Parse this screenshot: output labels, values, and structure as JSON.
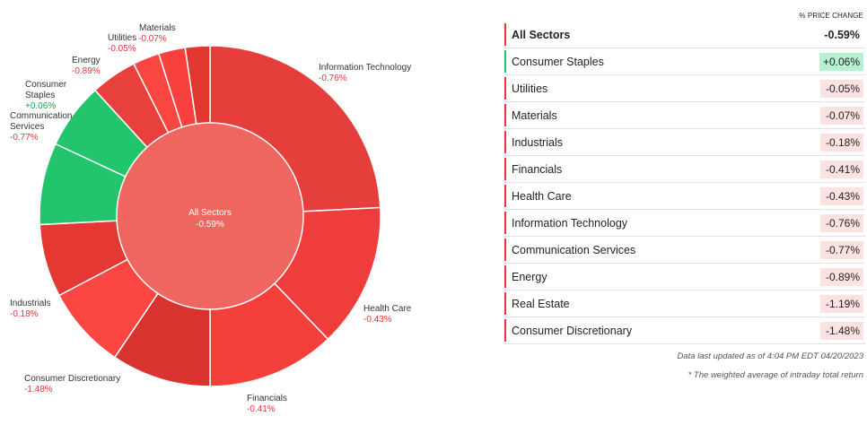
{
  "chart_data": {
    "type": "donut",
    "center": {
      "label": "All Sectors",
      "value": "-0.59%"
    },
    "slices": [
      {
        "name": "Information Technology",
        "value": "-0.76%",
        "weight": 0.259,
        "color": "#e53e3b"
      },
      {
        "name": "Health Care",
        "value": "-0.43%",
        "weight": 0.146,
        "color": "#ef3d3b"
      },
      {
        "name": "Financials",
        "value": "-0.41%",
        "weight": 0.13,
        "color": "#f43f3b"
      },
      {
        "name": "Consumer Discretionary",
        "value": "-1.48%",
        "weight": 0.101,
        "color": "#d9332f"
      },
      {
        "name": "Industrials",
        "value": "-0.18%",
        "weight": 0.084,
        "color": "#fb4641"
      },
      {
        "name": "Real Estate",
        "value": "-1.19%",
        "weight": 0.074,
        "color": "#e53833"
      },
      {
        "name": "Communication Services",
        "value": "-0.77%",
        "weight": 0.083,
        "color": "#22c56e"
      },
      {
        "name": "Consumer Staples",
        "value": "+0.06%",
        "weight": 0.067,
        "color": "#22c56e"
      },
      {
        "name": "Energy",
        "value": "-0.89%",
        "weight": 0.047,
        "color": "#e8403c"
      },
      {
        "name": "Utilities",
        "value": "-0.05%",
        "weight": 0.027,
        "color": "#fb4641"
      },
      {
        "name": "Materials",
        "value": "-0.07%",
        "weight": 0.027,
        "color": "#f8413d"
      },
      {
        "name": "",
        "value": "",
        "weight": 0.025,
        "color": "#e0372f"
      }
    ],
    "labels": [
      {
        "name": "Information Technology",
        "value": "-0.76%"
      },
      {
        "name": "Health Care",
        "value": "-0.43%"
      },
      {
        "name": "Financials",
        "value": "-0.41%"
      },
      {
        "name": "Consumer Discretionary",
        "value": "-1.48%"
      },
      {
        "name": "Industrials",
        "value": "-0.18%"
      },
      {
        "name": "Communication Services",
        "value": "-0.77%"
      },
      {
        "name": "Consumer Staples",
        "value": "+0.06%"
      },
      {
        "name": "Energy",
        "value": "-0.89%"
      },
      {
        "name": "Utilities",
        "value": "-0.05%"
      },
      {
        "name": "Materials",
        "value": "-0.07%"
      }
    ]
  },
  "table": {
    "column_header": "% PRICE CHANGE",
    "total": {
      "label": "All Sectors",
      "value": "-0.59%"
    },
    "rows": [
      {
        "label": "Consumer Staples",
        "value": "+0.06%",
        "accent": "#22c56e",
        "chip": "#b7f1d3"
      },
      {
        "label": "Utilities",
        "value": "-0.05%",
        "accent": "#e8343a",
        "chip": "#fde2e2"
      },
      {
        "label": "Materials",
        "value": "-0.07%",
        "accent": "#e8343a",
        "chip": "#fde2e2"
      },
      {
        "label": "Industrials",
        "value": "-0.18%",
        "accent": "#e8343a",
        "chip": "#fde2e2"
      },
      {
        "label": "Financials",
        "value": "-0.41%",
        "accent": "#e8343a",
        "chip": "#fde2e2"
      },
      {
        "label": "Health Care",
        "value": "-0.43%",
        "accent": "#e8343a",
        "chip": "#fde2e2"
      },
      {
        "label": "Information Technology",
        "value": "-0.76%",
        "accent": "#e8343a",
        "chip": "#fde2e2"
      },
      {
        "label": "Communication Services",
        "value": "-0.77%",
        "accent": "#e8343a",
        "chip": "#fde2e2"
      },
      {
        "label": "Energy",
        "value": "-0.89%",
        "accent": "#e8343a",
        "chip": "#fde2e2"
      },
      {
        "label": "Real Estate",
        "value": "-1.19%",
        "accent": "#e8343a",
        "chip": "#fde2e2"
      },
      {
        "label": "Consumer Discretionary",
        "value": "-1.48%",
        "accent": "#e8343a",
        "chip": "#fde2e2"
      }
    ],
    "footnote_1": "Data last updated as of 4:04 PM EDT 04/20/2023",
    "footnote_2": "* The weighted average of intraday total return"
  },
  "colors": {
    "center_fill": "#ef6660",
    "negative_text": "#e8343a",
    "positive_text": "#1c9e4a"
  }
}
